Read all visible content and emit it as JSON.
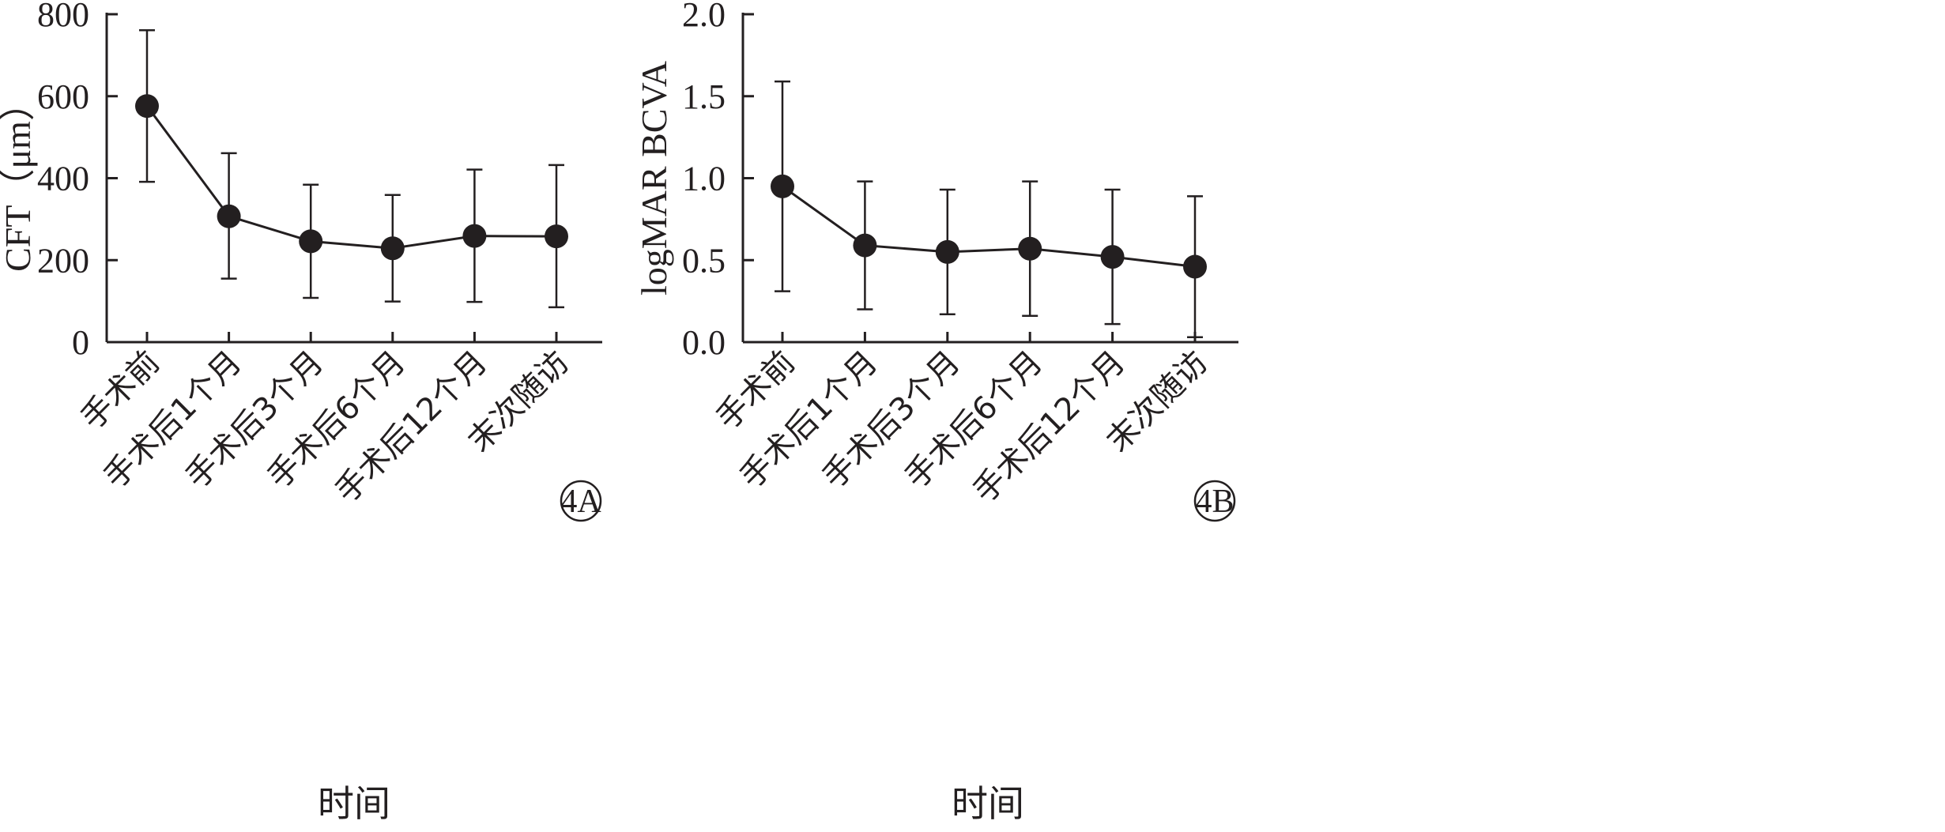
{
  "chart_data": [
    {
      "type": "line",
      "panel_label": "4A",
      "ylabel": "CFT（μm）",
      "xlabel": "时间",
      "ylim": [
        0,
        800
      ],
      "yticks": [
        "0",
        "200",
        "400",
        "600",
        "800"
      ],
      "categories": [
        "手术前",
        "手术后1个月",
        "手术后3个月",
        "手术后6个月",
        "手术后12个月",
        "末次随访"
      ],
      "series": [
        {
          "values": [
            576,
            307,
            246,
            229,
            259,
            258
          ],
          "error_low": [
            391,
            155,
            108,
            99,
            98,
            85
          ],
          "error_high": [
            761,
            461,
            384,
            359,
            421,
            432
          ]
        }
      ],
      "grid": false,
      "legend": "none"
    },
    {
      "type": "line",
      "panel_label": "4B",
      "ylabel": "logMAR BCVA",
      "xlabel": "时间",
      "ylim": [
        0,
        2
      ],
      "yticks": [
        "0.0",
        "0.5",
        "1.0",
        "1.5",
        "2.0"
      ],
      "categories": [
        "手术前",
        "手术后1个月",
        "手术后3个月",
        "手术后6个月",
        "手术后12个月",
        "末次随访"
      ],
      "series": [
        {
          "values": [
            0.95,
            0.59,
            0.55,
            0.57,
            0.52,
            0.46
          ],
          "error_low": [
            0.31,
            0.2,
            0.17,
            0.16,
            0.11,
            0.03
          ],
          "error_high": [
            1.59,
            0.98,
            0.93,
            0.98,
            0.93,
            0.89
          ]
        }
      ],
      "grid": false,
      "legend": "none"
    }
  ]
}
